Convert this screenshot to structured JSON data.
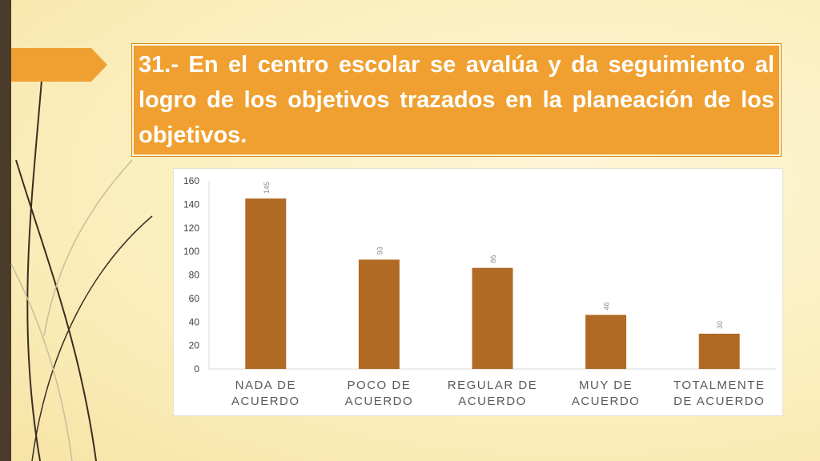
{
  "slide": {
    "title": "31.- En el centro escolar se avalúa y da seguimiento al logro de los objetivos trazados en la planeación de los objetivos."
  },
  "colors": {
    "bar": "#b06a24",
    "title_background": "#f0a030",
    "title_text": "#ffffff",
    "side_bar": "#4a3b2a"
  },
  "chart_data": {
    "type": "bar",
    "categories": [
      [
        "NADA DE",
        "ACUERDO"
      ],
      [
        "POCO DE",
        "ACUERDO"
      ],
      [
        "REGULAR DE",
        "ACUERDO"
      ],
      [
        "MUY DE",
        "ACUERDO"
      ],
      [
        "TOTALMENTE",
        "DE ACUERDO"
      ]
    ],
    "values": [
      145,
      93,
      86,
      46,
      30
    ],
    "data_labels": [
      "145",
      "93",
      "86",
      "46",
      "30"
    ],
    "ylim": [
      0,
      160
    ],
    "yticks": [
      0,
      20,
      40,
      60,
      80,
      100,
      120,
      140,
      160
    ],
    "grid": false,
    "legend": "none"
  }
}
